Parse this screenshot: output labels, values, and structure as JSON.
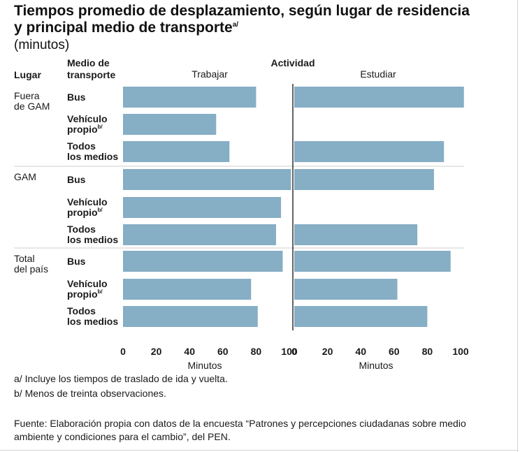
{
  "header": {
    "title_line1": "Tiempos promedio de desplazamiento, según lugar de residencia",
    "title_line2": "y principal medio de transporte",
    "title_note": "a/",
    "subtitle": "(minutos)"
  },
  "colors": {
    "bar": "#86aec5",
    "text": "#1a1a1a",
    "separator": "#cfcfcf",
    "axis": "#111111"
  },
  "chart_data": {
    "type": "bar",
    "orientation": "horizontal",
    "headers": {
      "lugar": "Lugar",
      "medio_line1": "Medio de",
      "medio_line2": "transporte",
      "actividad": "Actividad"
    },
    "groups": [
      {
        "label_lines": [
          "Fuera",
          "de GAM"
        ],
        "rows": [
          {
            "label_lines": [
              "Bus"
            ],
            "sup": ""
          },
          {
            "label_lines": [
              "Vehículo",
              "propio"
            ],
            "sup": "b/"
          },
          {
            "label_lines": [
              "Todos",
              "los medios"
            ],
            "sup": ""
          }
        ]
      },
      {
        "label_lines": [
          "GAM"
        ],
        "rows": [
          {
            "label_lines": [
              "Bus"
            ],
            "sup": ""
          },
          {
            "label_lines": [
              "Vehículo",
              "propio"
            ],
            "sup": "b/"
          },
          {
            "label_lines": [
              "Todos",
              "los medios"
            ],
            "sup": ""
          }
        ]
      },
      {
        "label_lines": [
          "Total",
          "del país"
        ],
        "rows": [
          {
            "label_lines": [
              "Bus"
            ],
            "sup": ""
          },
          {
            "label_lines": [
              "Vehículo",
              "propio"
            ],
            "sup": "b/"
          },
          {
            "label_lines": [
              "Todos",
              "los medios"
            ],
            "sup": ""
          }
        ]
      }
    ],
    "panels": [
      {
        "name": "Trabajar",
        "values": [
          80,
          56,
          64,
          101,
          95,
          92,
          96,
          77,
          81
        ],
        "xlim": [
          0,
          100
        ],
        "ticks": [
          0,
          20,
          40,
          60,
          80,
          100
        ],
        "xlabel": "Minutos"
      },
      {
        "name": "Estudiar",
        "values": [
          102,
          null,
          90,
          84,
          null,
          74,
          94,
          62,
          80
        ],
        "xlim": [
          0,
          100
        ],
        "ticks": [
          0,
          20,
          40,
          60,
          80,
          100
        ],
        "xlabel": "Minutos"
      }
    ],
    "grid": false,
    "legend": "none"
  },
  "footnotes": {
    "a": "a/ Incluye los tiempos de traslado de ida y vuelta.",
    "b": "b/ Menos de treinta observaciones.",
    "source_line1": "Fuente: Elaboración propia con datos de la encuesta “Patrones y percepciones ciudadanas sobre medio",
    "source_line2": "ambiente y condiciones para el cambio”, del PEN."
  }
}
